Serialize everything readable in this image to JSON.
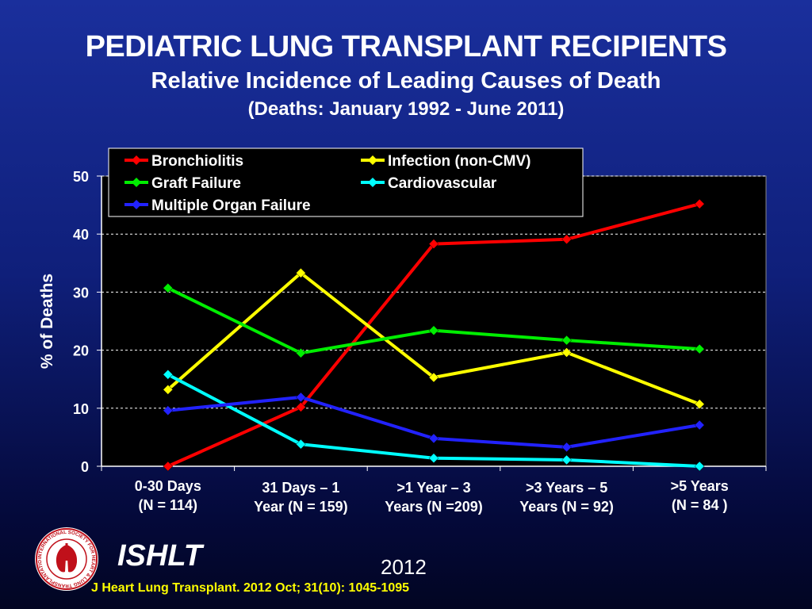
{
  "title": "PEDIATRIC LUNG TRANSPLANT RECIPIENTS",
  "subtitle": "Relative Incidence of Leading Causes of Death",
  "subtitle2": "(Deaths: January 1992 - June 2011)",
  "footer": {
    "logo_icon": "ishlt-seal-icon",
    "logo_text": "INTERNATIONAL SOCIETY FOR HEART & LUNG TRANSPLANTATION",
    "org": "ISHLT",
    "year": "2012",
    "citation": "J Heart Lung Transplant.  2012 Oct; 31(10): 1045-1095"
  },
  "chart_data": {
    "type": "line",
    "ylabel": "% of Deaths",
    "ylim": [
      0,
      50
    ],
    "yticks": [
      "0",
      "10",
      "20",
      "30",
      "40",
      "50"
    ],
    "grid": "horizontal-dashed",
    "legend_position": "top-left",
    "categories": [
      [
        "0-30 Days",
        "(N = 114)"
      ],
      [
        "31 Days –  1",
        "Year  (N = 159)"
      ],
      [
        ">1 Year – 3",
        "Years (N =209)"
      ],
      [
        ">3 Years – 5",
        "Years (N = 92)"
      ],
      [
        ">5 Years",
        "(N = 84 )"
      ]
    ],
    "series": [
      {
        "name": "Bronchiolitis",
        "color": "#ff0000",
        "values": [
          0,
          10.2,
          38.3,
          39.1,
          45.2
        ]
      },
      {
        "name": "Infection (non-CMV)",
        "color": "#ffff00",
        "values": [
          13.2,
          33.3,
          15.3,
          19.6,
          10.7
        ]
      },
      {
        "name": "Graft Failure",
        "color": "#00ee00",
        "values": [
          30.7,
          19.5,
          23.4,
          21.7,
          20.2
        ]
      },
      {
        "name": "Cardiovascular",
        "color": "#00ffff",
        "values": [
          15.8,
          3.8,
          1.4,
          1.1,
          0
        ]
      },
      {
        "name": "Multiple Organ Failure",
        "color": "#2222ff",
        "values": [
          9.6,
          11.9,
          4.8,
          3.3,
          7.1
        ]
      }
    ]
  }
}
